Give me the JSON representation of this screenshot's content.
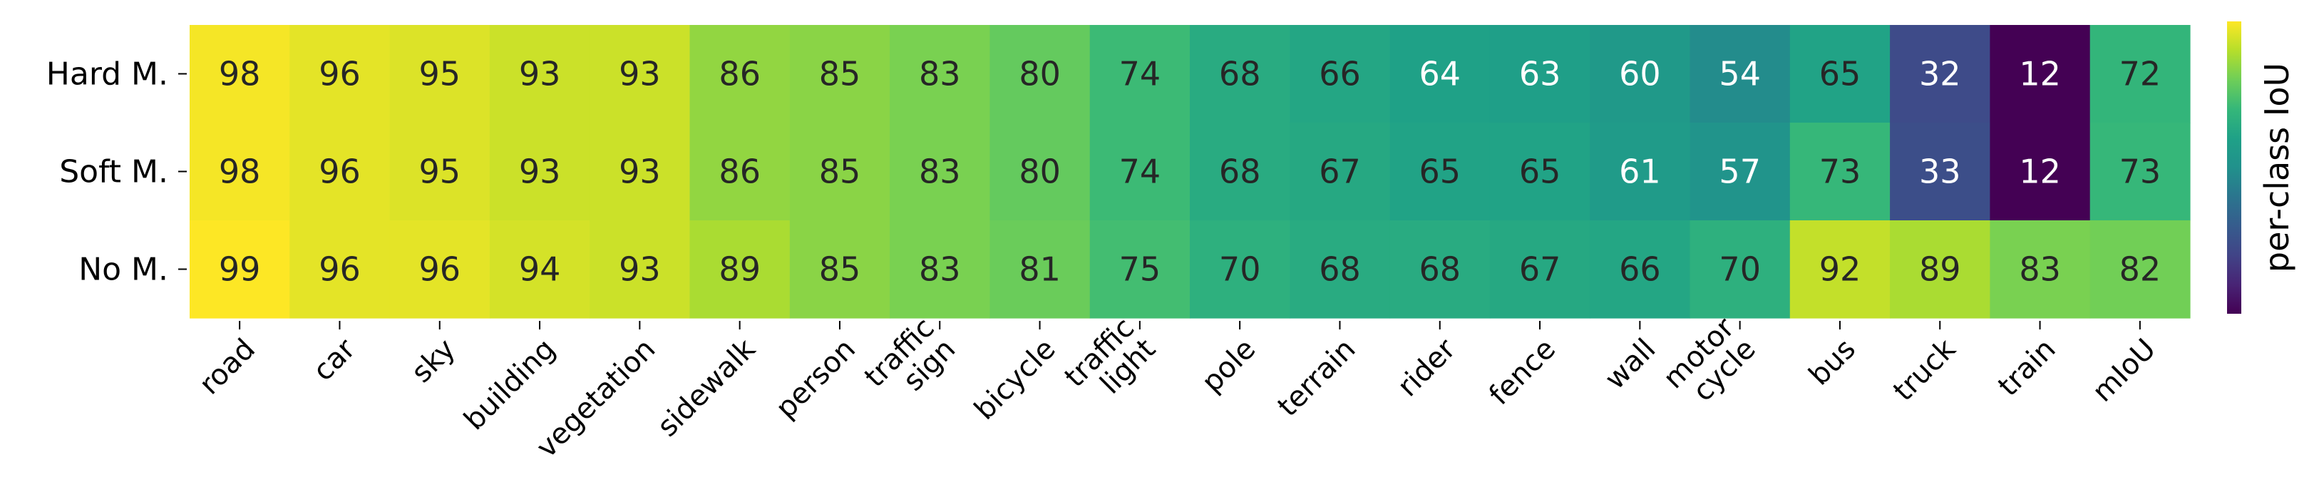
{
  "chart_data": {
    "type": "heatmap",
    "rows": [
      "Hard M.",
      "Soft M.",
      "No M."
    ],
    "columns": [
      [
        "road"
      ],
      [
        "car"
      ],
      [
        "sky"
      ],
      [
        "building"
      ],
      [
        "vegetation"
      ],
      [
        "sidewalk"
      ],
      [
        "person"
      ],
      [
        "traffic",
        "sign"
      ],
      [
        "bicycle"
      ],
      [
        "traffic",
        "light"
      ],
      [
        "pole"
      ],
      [
        "terrain"
      ],
      [
        "rider"
      ],
      [
        "fence"
      ],
      [
        "wall"
      ],
      [
        "motor",
        "cycle"
      ],
      [
        "bus"
      ],
      [
        "truck"
      ],
      [
        "train"
      ],
      [
        "mIoU"
      ]
    ],
    "values": [
      [
        98,
        96,
        95,
        93,
        93,
        86,
        85,
        83,
        80,
        74,
        68,
        66,
        64,
        63,
        60,
        54,
        65,
        32,
        12,
        72
      ],
      [
        98,
        96,
        95,
        93,
        93,
        86,
        85,
        83,
        80,
        74,
        68,
        67,
        65,
        65,
        61,
        57,
        73,
        33,
        12,
        73
      ],
      [
        99,
        96,
        96,
        94,
        93,
        89,
        85,
        83,
        81,
        75,
        70,
        68,
        68,
        67,
        66,
        70,
        92,
        89,
        83,
        82
      ]
    ],
    "value_range": [
      12,
      99
    ],
    "colormap": "viridis",
    "colorbar_label": "per-class IoU",
    "text_color_light": "#ffffff",
    "text_color_dark": "#262626"
  }
}
